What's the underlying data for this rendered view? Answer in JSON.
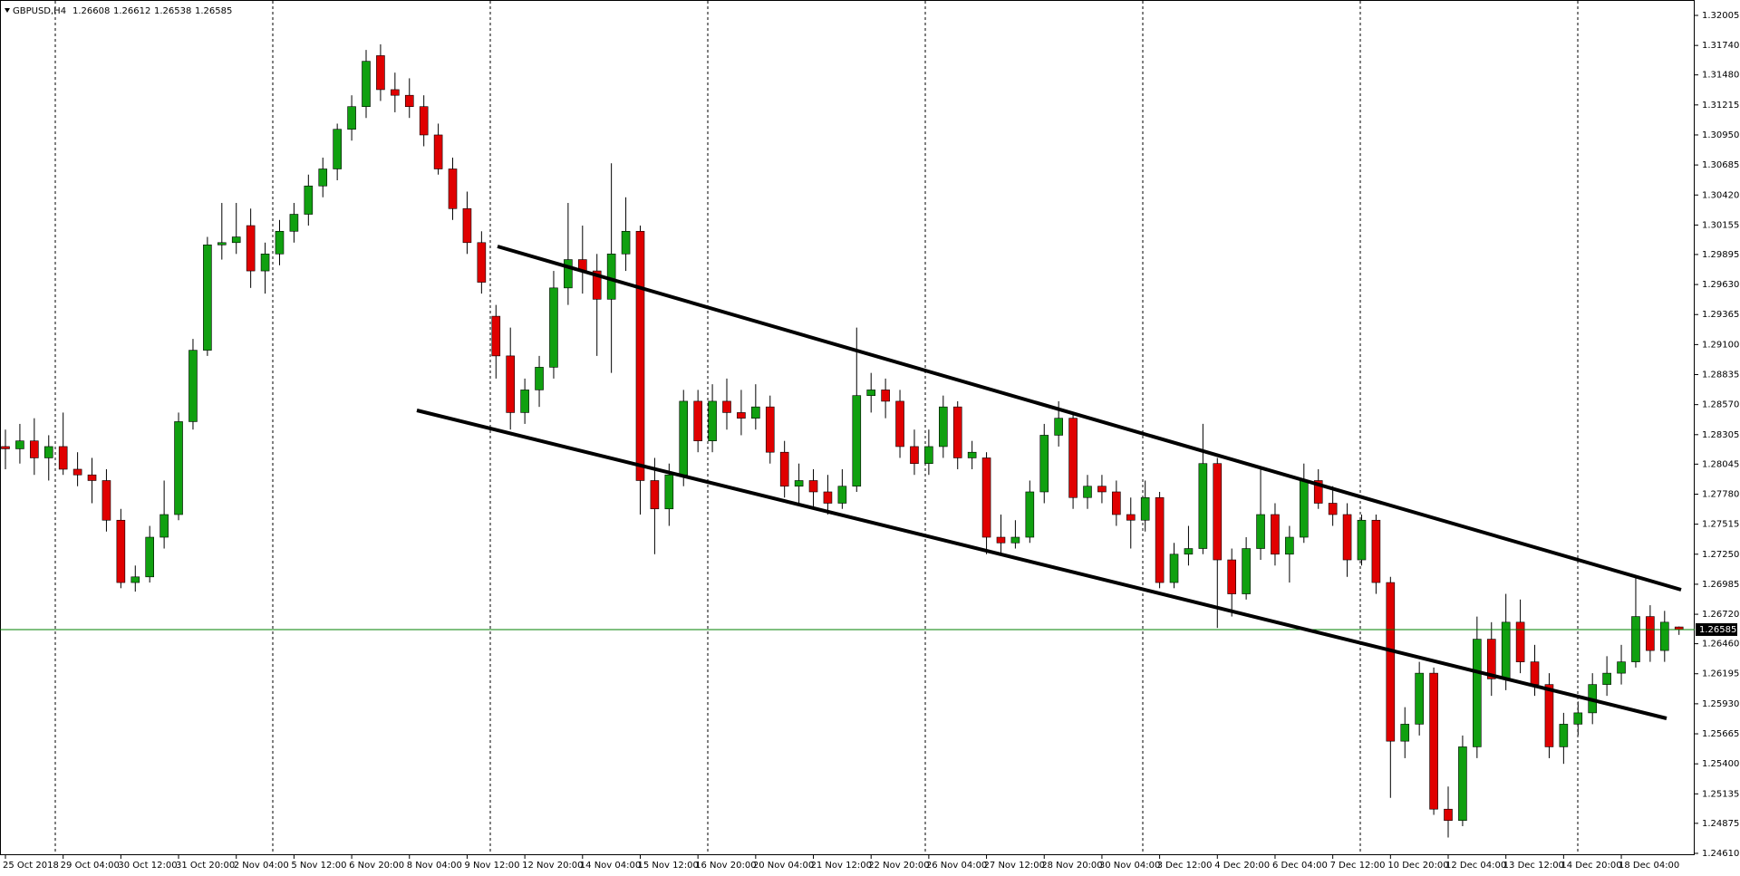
{
  "chart_data": {
    "type": "candlestick",
    "symbol": "GBPUSD,H4",
    "up_color": "#10a010",
    "down_color": "#e00000",
    "wick_color": "#000000",
    "price_line_color": "#008000",
    "x_labels": [
      "25 Oct 2018",
      "29 Oct 04:00",
      "30 Oct 12:00",
      "31 Oct 20:00",
      "2 Nov 04:00",
      "5 Nov 12:00",
      "6 Nov 20:00",
      "8 Nov 04:00",
      "9 Nov 12:00",
      "12 Nov 20:00",
      "14 Nov 04:00",
      "15 Nov 12:00",
      "16 Nov 20:00",
      "20 Nov 04:00",
      "21 Nov 12:00",
      "22 Nov 20:00",
      "26 Nov 04:00",
      "27 Nov 12:00",
      "28 Nov 20:00",
      "30 Nov 04:00",
      "3 Dec 12:00",
      "4 Dec 20:00",
      "6 Dec 04:00",
      "7 Dec 12:00",
      "10 Dec 20:00",
      "12 Dec 04:00",
      "13 Dec 12:00",
      "14 Dec 20:00",
      "18 Dec 04:00"
    ],
    "open": [
      1.282,
      1.2818,
      1.2825,
      1.281,
      1.282,
      1.28,
      1.2795,
      1.279,
      1.2755,
      1.27,
      1.2705,
      1.274,
      1.276,
      1.2842,
      1.2905,
      1.2998,
      1.3,
      1.3015,
      1.2975,
      1.299,
      1.301,
      1.3025,
      1.305,
      1.3065,
      1.31,
      1.312,
      1.3165,
      1.3135,
      1.313,
      1.312,
      1.3095,
      1.3065,
      1.303,
      1.3,
      1.2935,
      1.29,
      1.285,
      1.287,
      1.289,
      1.296,
      1.2985,
      1.2975,
      1.295,
      1.299,
      1.301,
      1.279,
      1.2765,
      1.2795,
      1.286,
      1.2825,
      1.286,
      1.285,
      1.2845,
      1.2855,
      1.2815,
      1.2785,
      1.279,
      1.278,
      1.277,
      1.2785,
      1.2865,
      1.287,
      1.286,
      1.282,
      1.2805,
      1.282,
      1.2855,
      1.281,
      1.281,
      1.274,
      1.2735,
      1.274,
      1.278,
      1.283,
      1.2845,
      1.2775,
      1.2785,
      1.278,
      1.276,
      1.2755,
      1.2775,
      1.27,
      1.2725,
      1.273,
      1.2805,
      1.272,
      1.269,
      1.273,
      1.276,
      1.2725,
      1.274,
      1.279,
      1.277,
      1.276,
      1.272,
      1.2755,
      1.27,
      1.256,
      1.2575,
      1.262,
      1.25,
      1.249,
      1.2555,
      1.265,
      1.2615,
      1.2665,
      1.263,
      1.261,
      1.2555,
      1.2575,
      1.2585,
      1.261,
      1.262,
      1.263,
      1.267,
      1.264,
      1.26608
    ],
    "high": [
      1.2835,
      1.284,
      1.2845,
      1.283,
      1.285,
      1.2815,
      1.281,
      1.28,
      1.2765,
      1.2715,
      1.275,
      1.279,
      1.285,
      1.2915,
      1.3005,
      1.3035,
      1.3035,
      1.303,
      1.3,
      1.302,
      1.3035,
      1.306,
      1.3075,
      1.3105,
      1.313,
      1.317,
      1.3175,
      1.315,
      1.3145,
      1.313,
      1.3105,
      1.3075,
      1.3045,
      1.301,
      1.2945,
      1.2925,
      1.288,
      1.29,
      1.2975,
      1.3035,
      1.3015,
      1.299,
      1.307,
      1.304,
      1.3015,
      1.281,
      1.2805,
      1.287,
      1.287,
      1.2875,
      1.288,
      1.287,
      1.2875,
      1.2865,
      1.2825,
      1.2805,
      1.28,
      1.2795,
      1.28,
      1.2925,
      1.2885,
      1.288,
      1.287,
      1.2835,
      1.2835,
      1.2865,
      1.286,
      1.2825,
      1.2815,
      1.276,
      1.2755,
      1.279,
      1.284,
      1.286,
      1.285,
      1.2795,
      1.2795,
      1.279,
      1.2775,
      1.279,
      1.278,
      1.2735,
      1.275,
      1.284,
      1.281,
      1.273,
      1.274,
      1.28,
      1.277,
      1.275,
      1.2805,
      1.28,
      1.2785,
      1.277,
      1.276,
      1.276,
      1.2705,
      1.259,
      1.263,
      1.2625,
      1.252,
      1.2565,
      1.267,
      1.2665,
      1.269,
      1.2685,
      1.2645,
      1.262,
      1.2585,
      1.2595,
      1.262,
      1.2635,
      1.2645,
      1.2705,
      1.268,
      1.2675,
      1.26612
    ],
    "low": [
      1.28,
      1.2805,
      1.2795,
      1.279,
      1.2795,
      1.2785,
      1.277,
      1.2745,
      1.2695,
      1.2692,
      1.27,
      1.273,
      1.2755,
      1.2835,
      1.29,
      1.2985,
      1.299,
      1.296,
      1.2955,
      1.298,
      1.3,
      1.3015,
      1.304,
      1.3055,
      1.309,
      1.311,
      1.3125,
      1.3115,
      1.311,
      1.3085,
      1.306,
      1.302,
      1.299,
      1.2955,
      1.288,
      1.2835,
      1.284,
      1.2855,
      1.288,
      1.2945,
      1.2955,
      1.29,
      1.2885,
      1.2975,
      1.276,
      1.2725,
      1.275,
      1.2785,
      1.2815,
      1.2815,
      1.2835,
      1.283,
      1.2835,
      1.2805,
      1.2775,
      1.277,
      1.2765,
      1.276,
      1.2765,
      1.278,
      1.285,
      1.2845,
      1.281,
      1.2795,
      1.2795,
      1.281,
      1.28,
      1.28,
      1.2725,
      1.2725,
      1.273,
      1.2735,
      1.277,
      1.282,
      1.2765,
      1.2765,
      1.277,
      1.275,
      1.273,
      1.2745,
      1.2695,
      1.2695,
      1.2715,
      1.2725,
      1.266,
      1.267,
      1.2685,
      1.272,
      1.2715,
      1.27,
      1.2735,
      1.2765,
      1.275,
      1.2705,
      1.2715,
      1.269,
      1.251,
      1.2545,
      1.2565,
      1.2495,
      1.2475,
      1.2485,
      1.2545,
      1.26,
      1.2605,
      1.262,
      1.26,
      1.2545,
      1.254,
      1.2565,
      1.2575,
      1.26,
      1.261,
      1.2625,
      1.263,
      1.263,
      1.26538
    ],
    "close": [
      1.2818,
      1.2825,
      1.281,
      1.282,
      1.28,
      1.2795,
      1.279,
      1.2755,
      1.27,
      1.2705,
      1.274,
      1.276,
      1.2842,
      1.2905,
      1.2998,
      1.3,
      1.3005,
      1.2975,
      1.299,
      1.301,
      1.3025,
      1.305,
      1.3065,
      1.31,
      1.312,
      1.316,
      1.3135,
      1.313,
      1.312,
      1.3095,
      1.3065,
      1.303,
      1.3,
      1.2965,
      1.29,
      1.285,
      1.287,
      1.289,
      1.296,
      1.2985,
      1.2975,
      1.295,
      1.299,
      1.301,
      1.279,
      1.2765,
      1.2795,
      1.286,
      1.2825,
      1.286,
      1.285,
      1.2845,
      1.2855,
      1.2815,
      1.2785,
      1.279,
      1.278,
      1.277,
      1.2785,
      1.2865,
      1.287,
      1.286,
      1.282,
      1.2805,
      1.282,
      1.2855,
      1.281,
      1.2815,
      1.274,
      1.2735,
      1.274,
      1.278,
      1.283,
      1.2845,
      1.2775,
      1.2785,
      1.278,
      1.276,
      1.2755,
      1.2775,
      1.27,
      1.2725,
      1.273,
      1.2805,
      1.272,
      1.269,
      1.273,
      1.276,
      1.2725,
      1.274,
      1.279,
      1.277,
      1.276,
      1.272,
      1.2755,
      1.27,
      1.256,
      1.2575,
      1.262,
      1.25,
      1.249,
      1.2555,
      1.265,
      1.2615,
      1.2665,
      1.263,
      1.261,
      1.2555,
      1.2575,
      1.2585,
      1.261,
      1.262,
      1.263,
      1.267,
      1.264,
      1.2665,
      1.26585
    ],
    "ylim": [
      1.24594,
      1.32109
    ],
    "yticks": [
      1.32005,
      {
        "value": 1.3174,
        "label": "1.31740"
      },
      {
        "value": 1.3148,
        "label": "1.31480"
      },
      1.31215,
      {
        "value": 1.3095,
        "label": "1.30950"
      },
      1.30685,
      {
        "value": 1.3042,
        "label": "1.30420"
      },
      1.30155,
      1.29895,
      {
        "value": 1.2963,
        "label": "1.29630"
      },
      1.29365,
      {
        "value": 1.291,
        "label": "1.29100"
      },
      1.28835,
      {
        "value": 1.2857,
        "label": "1.28570"
      },
      1.28305,
      1.28045,
      {
        "value": 1.2778,
        "label": "1.27780"
      },
      1.27515,
      {
        "value": 1.2725,
        "label": "1.27250"
      },
      1.26985,
      {
        "value": 1.2672,
        "label": "1.26720"
      },
      {
        "value": 1.2646,
        "label": "1.26460"
      },
      1.26195,
      {
        "value": 1.2593,
        "label": "1.25930"
      },
      1.25665,
      {
        "value": 1.254,
        "label": "1.25400"
      },
      1.25135,
      1.24875,
      {
        "value": 1.2461,
        "label": "1.24610"
      }
    ]
  }
}
